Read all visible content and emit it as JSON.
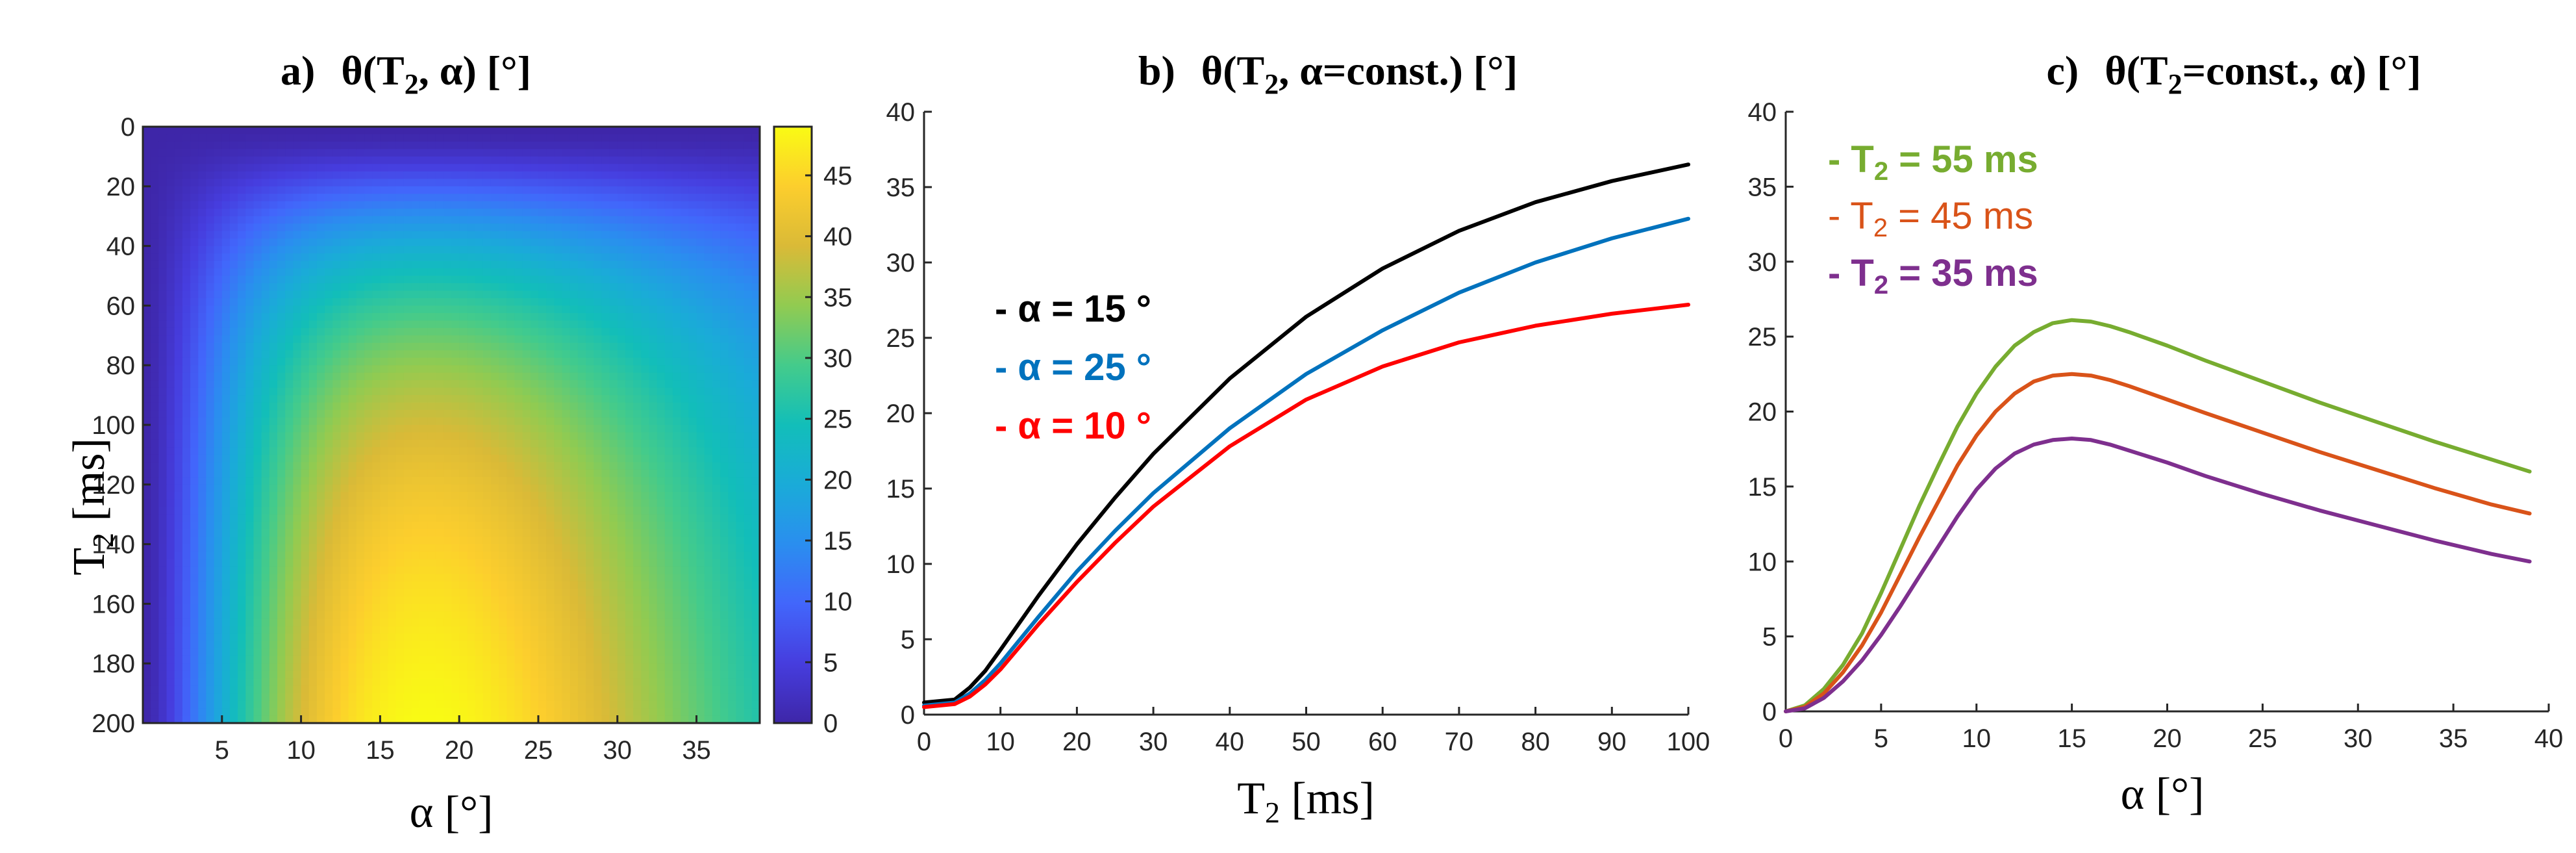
{
  "chart_data": [
    {
      "type": "heatmap",
      "title": {
        "prefix": "a)",
        "main_1": "θ(T",
        "sub_1": "2",
        "main_2": ", α)  [°]"
      },
      "xlabel": "α [°]",
      "ylabel": {
        "main": "T",
        "sub": "2",
        "rest": " [ms]"
      },
      "xlim": [
        0,
        39
      ],
      "ylim": [
        0,
        200
      ],
      "y_reversed": true,
      "xticks": [
        "5",
        "10",
        "15",
        "20",
        "25",
        "30",
        "35"
      ],
      "yticks": [
        "0",
        "20",
        "40",
        "60",
        "80",
        "100",
        "120",
        "140",
        "160",
        "180",
        "200"
      ],
      "colorscale": "parula",
      "colorbar": {
        "range": [
          0,
          49
        ],
        "ticks": [
          "0",
          "5",
          "10",
          "15",
          "20",
          "25",
          "30",
          "35",
          "40",
          "45"
        ]
      },
      "peak": {
        "alpha": 18,
        "T2": 200,
        "value": 49
      }
    },
    {
      "type": "line",
      "title": {
        "prefix": "b)",
        "main_1": "θ(T",
        "sub_1": "2",
        "main_2": ", α=const.)  [°]"
      },
      "xlabel": {
        "main": "T",
        "sub": "2",
        "rest": "  [ms]"
      },
      "xlim": [
        0,
        100
      ],
      "ylim": [
        0,
        40
      ],
      "xticks": [
        "0",
        "10",
        "20",
        "30",
        "40",
        "50",
        "60",
        "70",
        "80",
        "90",
        "100"
      ],
      "yticks": [
        "0",
        "5",
        "10",
        "15",
        "20",
        "25",
        "30",
        "35",
        "40"
      ],
      "x": [
        0,
        4,
        6,
        8,
        10,
        15,
        20,
        25,
        30,
        40,
        50,
        60,
        70,
        80,
        90,
        100
      ],
      "series": [
        {
          "name": "- α = 15 °",
          "color": "#000000",
          "values": [
            0.8,
            1.0,
            1.8,
            2.9,
            4.3,
            7.9,
            11.3,
            14.4,
            17.3,
            22.3,
            26.4,
            29.6,
            32.1,
            34.0,
            35.4,
            36.5
          ]
        },
        {
          "name": "- α = 25 °",
          "color": "#0072BD",
          "values": [
            0.6,
            0.8,
            1.4,
            2.3,
            3.4,
            6.5,
            9.5,
            12.2,
            14.7,
            19.0,
            22.6,
            25.5,
            28.0,
            30.0,
            31.6,
            32.9
          ]
        },
        {
          "name": "- α = 10 °",
          "color": "#FF0000",
          "values": [
            0.5,
            0.7,
            1.2,
            2.0,
            3.0,
            6.0,
            8.8,
            11.4,
            13.8,
            17.8,
            20.9,
            23.1,
            24.7,
            25.8,
            26.6,
            27.2
          ]
        }
      ]
    },
    {
      "type": "line",
      "title": {
        "prefix": "c)",
        "main_1": "θ(T",
        "sub_1": "2",
        "main_2": "=const., α)  [°]"
      },
      "xlabel": "α [°]",
      "xlim": [
        0,
        40
      ],
      "ylim": [
        0,
        40
      ],
      "xticks": [
        "0",
        "5",
        "10",
        "15",
        "20",
        "25",
        "30",
        "35",
        "40"
      ],
      "yticks": [
        "0",
        "5",
        "10",
        "15",
        "20",
        "25",
        "30",
        "35",
        "40"
      ],
      "x": [
        0,
        1,
        2,
        3,
        4,
        5,
        6,
        7,
        8,
        9,
        10,
        11,
        12,
        13,
        14,
        15,
        16,
        17,
        18,
        20,
        22,
        25,
        28,
        31,
        34,
        37,
        39
      ],
      "series": [
        {
          "name": {
            "pre": "- T",
            "sub": "2",
            "post": " = 55 ms"
          },
          "bold": true,
          "color": "#77AC30",
          "values": [
            0,
            0.4,
            1.5,
            3.1,
            5.2,
            7.9,
            10.8,
            13.7,
            16.4,
            19.0,
            21.2,
            23.0,
            24.4,
            25.3,
            25.9,
            26.1,
            26.0,
            25.7,
            25.3,
            24.4,
            23.4,
            22.0,
            20.6,
            19.3,
            18.0,
            16.8,
            16.0
          ]
        },
        {
          "name": {
            "pre": "- T",
            "sub": "2",
            "post": " = 45 ms"
          },
          "bold": false,
          "color": "#D95319",
          "values": [
            0,
            0.3,
            1.2,
            2.6,
            4.4,
            6.6,
            9.1,
            11.6,
            14.0,
            16.4,
            18.4,
            20.0,
            21.2,
            22.0,
            22.4,
            22.5,
            22.4,
            22.1,
            21.7,
            20.8,
            19.9,
            18.6,
            17.3,
            16.1,
            14.9,
            13.8,
            13.2
          ]
        },
        {
          "name": {
            "pre": "- T",
            "sub": "2",
            "post": " = 35 ms"
          },
          "bold": true,
          "color": "#7E2F8E",
          "values": [
            0,
            0.2,
            0.9,
            2.0,
            3.4,
            5.1,
            7.0,
            9.0,
            11.0,
            13.0,
            14.8,
            16.2,
            17.2,
            17.8,
            18.1,
            18.2,
            18.1,
            17.8,
            17.4,
            16.6,
            15.7,
            14.5,
            13.4,
            12.4,
            11.4,
            10.5,
            10.0
          ]
        }
      ]
    }
  ]
}
